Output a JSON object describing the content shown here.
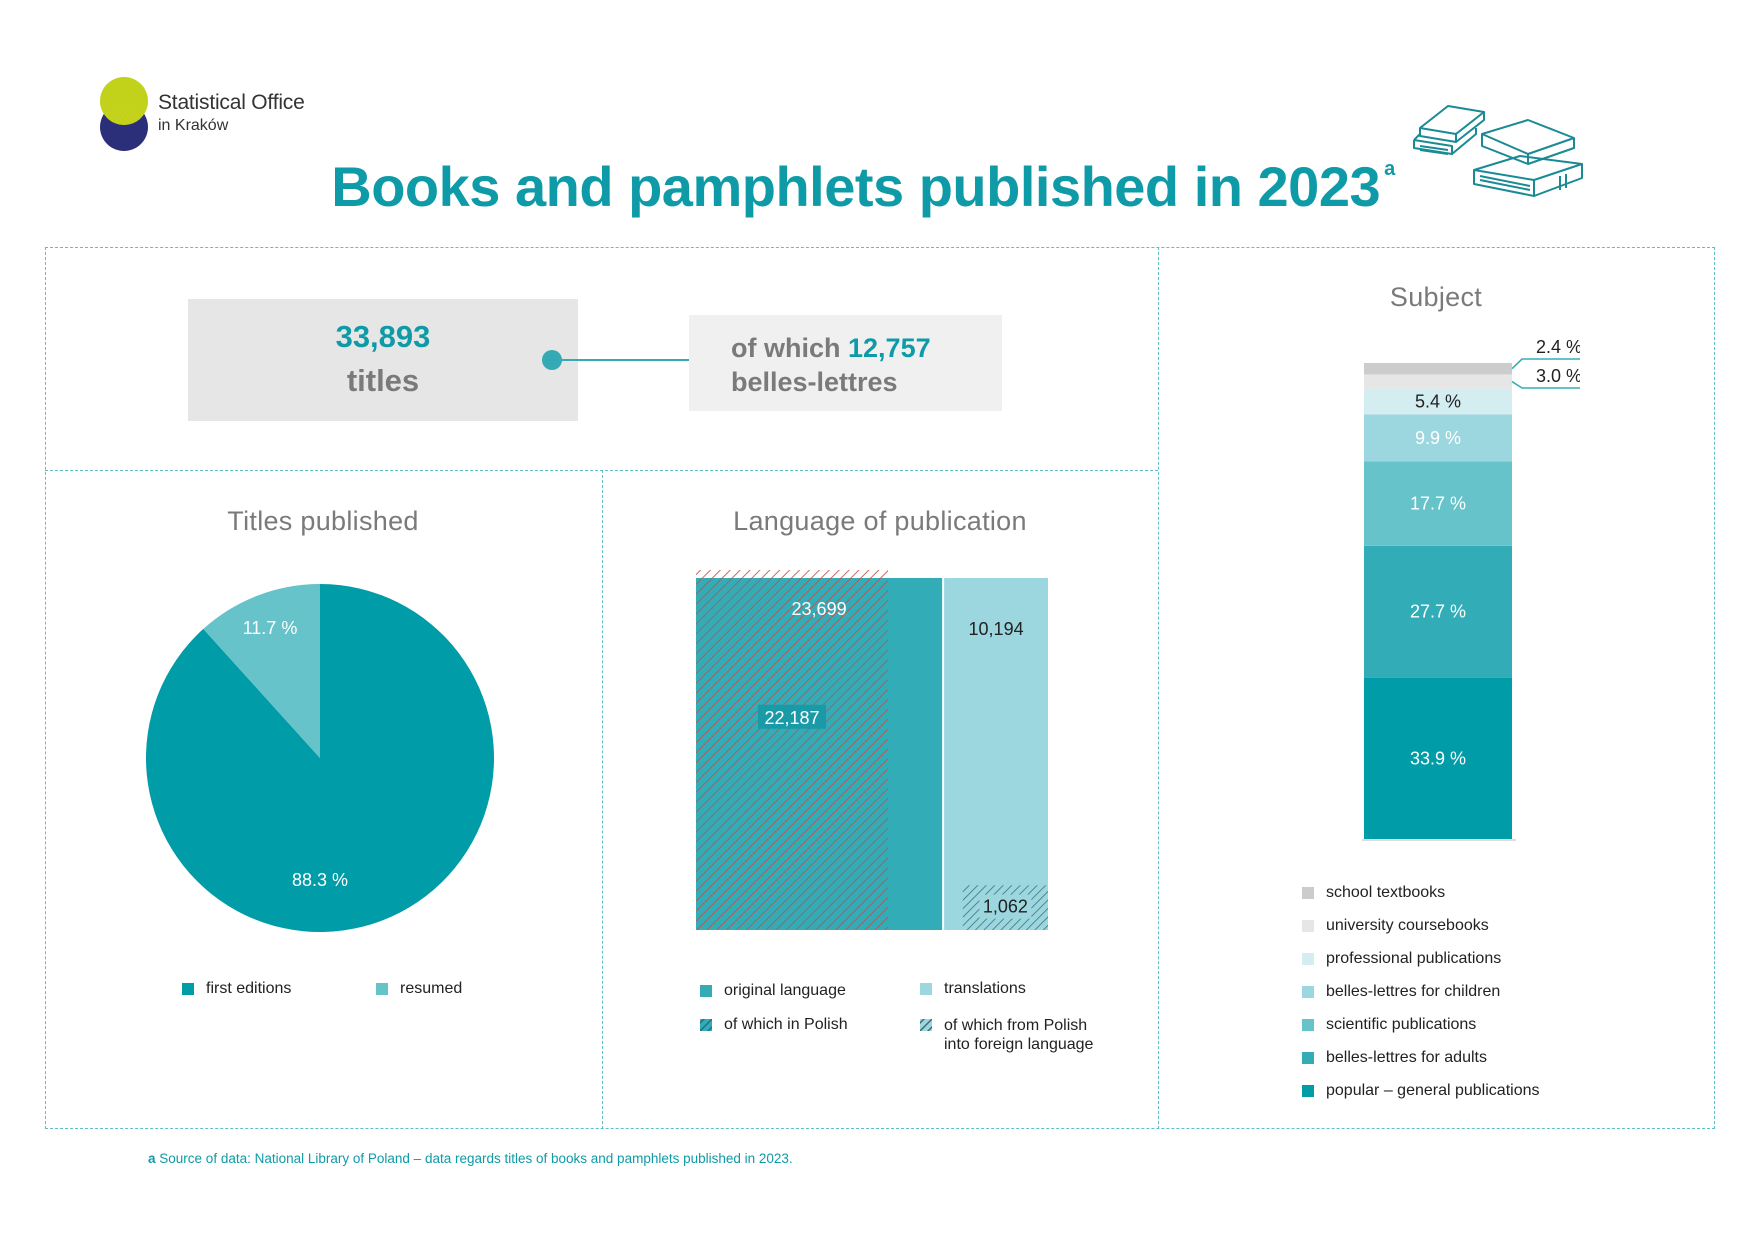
{
  "header": {
    "logo_line1": "Statistical Office",
    "logo_line2": "in Kraków",
    "title": "Books and pamphlets published in 2023",
    "title_note": "a"
  },
  "totals": {
    "titles_value": "33,893",
    "titles_label": "titles",
    "belles_prefix": "of which",
    "belles_value": "12,757",
    "belles_label": "belles-lettres"
  },
  "colors": {
    "accent": "#0e9ba7",
    "first_editions": "#009ca8",
    "resumed": "#66c3c9",
    "original_language": "#32adb8",
    "translations": "#9cd6df",
    "hatch": "#c0504d",
    "school_textbooks": "#cccccc",
    "university_coursebooks": "#e6e6e6",
    "professional_publications": "#d3edf0",
    "belles_children": "#9cd6df",
    "scientific_publications": "#66c3c9",
    "belles_adults": "#32adb8",
    "popular_general": "#009ca8"
  },
  "icons": {
    "logo": "logo-circles-icon",
    "books": "books-stack-icon"
  },
  "chart_data": [
    {
      "type": "pie",
      "title": "Titles published",
      "labels": [
        "first editions",
        "resumed"
      ],
      "values": [
        88.3,
        11.7
      ],
      "value_labels": [
        "88.3 %",
        "11.7 %"
      ],
      "legend": [
        "first editions",
        "resumed"
      ]
    },
    {
      "type": "bar",
      "title": "Language of publication",
      "categories": [
        "original language",
        "translations"
      ],
      "values": [
        23699,
        10194
      ],
      "value_labels": [
        "23,699",
        "10,194"
      ],
      "subsets": [
        {
          "name": "of which in Polish",
          "parent": "original language",
          "value": 22187,
          "label": "22,187"
        },
        {
          "name": "of which from Polish into foreign language",
          "parent": "translations",
          "value": 1062,
          "label": "1,062"
        }
      ],
      "legend": [
        "original language",
        "translations",
        "of which in Polish",
        "of which from Polish into foreign language"
      ]
    },
    {
      "type": "bar",
      "stacked": true,
      "title": "Subject",
      "series": [
        {
          "name": "popular – general publications",
          "value": 33.9,
          "label": "33.9 %"
        },
        {
          "name": "belles-lettres for adults",
          "value": 27.7,
          "label": "27.7 %"
        },
        {
          "name": "scientific publications",
          "value": 17.7,
          "label": "17.7 %"
        },
        {
          "name": "belles-lettres for children",
          "value": 9.9,
          "label": "9.9 %"
        },
        {
          "name": "professional publications",
          "value": 5.4,
          "label": "5.4 %"
        },
        {
          "name": "university coursebooks",
          "value": 3.0,
          "label": "3.0 %"
        },
        {
          "name": "school textbooks",
          "value": 2.4,
          "label": "2.4 %"
        }
      ],
      "legend": [
        "school textbooks",
        "university coursebooks",
        "professional publications",
        "belles-lettres for children",
        "scientific publications",
        "belles-lettres for adults",
        "popular – general publications"
      ]
    }
  ],
  "footnote": {
    "mark": "a",
    "text": "Source of data: National Library of Poland – data regards titles of books and pamphlets published in 2023."
  }
}
